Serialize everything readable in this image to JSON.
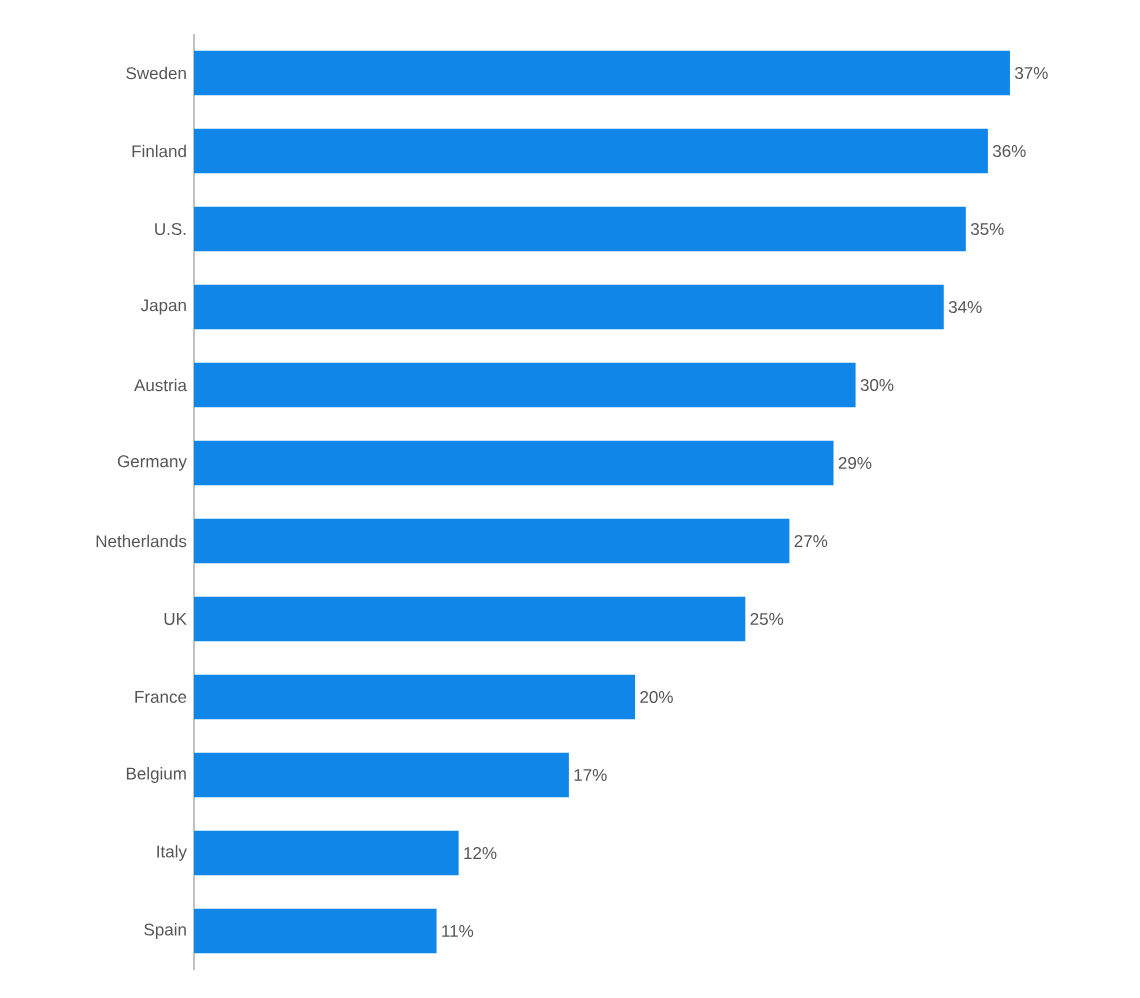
{
  "chart_data": {
    "type": "bar",
    "orientation": "horizontal",
    "categories": [
      "Sweden",
      "Finland",
      "U.S.",
      "Japan",
      "Austria",
      "Germany",
      "Netherlands",
      "UK",
      "France",
      "Belgium",
      "Italy",
      "Spain"
    ],
    "values": [
      37,
      36,
      35,
      34,
      30,
      29,
      27,
      25,
      20,
      17,
      12,
      11
    ],
    "value_labels": [
      "37%",
      "36%",
      "35%",
      "34%",
      "30%",
      "29%",
      "27%",
      "25%",
      "20%",
      "17%",
      "12%",
      "11%"
    ],
    "color": "#0f86e8"
  }
}
